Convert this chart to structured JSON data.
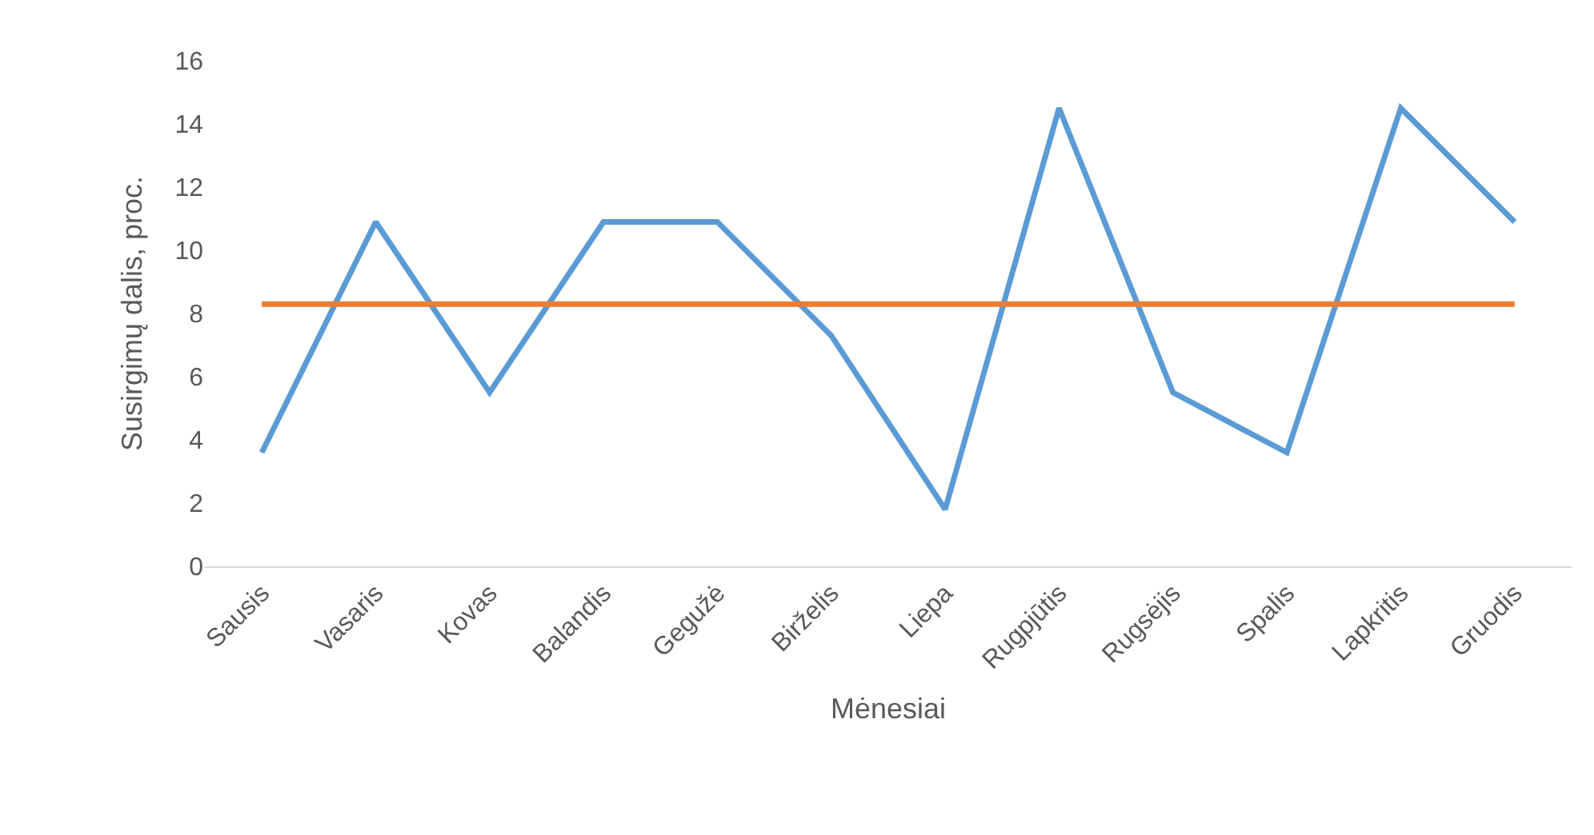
{
  "chart_data": {
    "type": "line",
    "xlabel": "Mėnesiai",
    "ylabel": "Susirgimų dalis, proc.",
    "categories": [
      "Sausis",
      "Vasaris",
      "Kovas",
      "Balandis",
      "Gegužė",
      "Birželis",
      "Liepa",
      "Rugpjūtis",
      "Rugsėjis",
      "Spalis",
      "Lapkritis",
      "Gruodis"
    ],
    "series": [
      {
        "color": "#5b9bd5",
        "values": [
          3.6,
          10.9,
          5.5,
          10.9,
          10.9,
          7.3,
          1.8,
          14.5,
          5.5,
          3.6,
          14.5,
          10.9
        ]
      },
      {
        "color": "#ed7d31",
        "values": [
          8.3,
          8.3,
          8.3,
          8.3,
          8.3,
          8.3,
          8.3,
          8.3,
          8.3,
          8.3,
          8.3,
          8.3
        ]
      }
    ],
    "ylim": [
      0,
      16
    ],
    "yticks": [
      0,
      2,
      4,
      6,
      8,
      10,
      12,
      14,
      16
    ],
    "marker": "none",
    "line_style": "solid"
  }
}
